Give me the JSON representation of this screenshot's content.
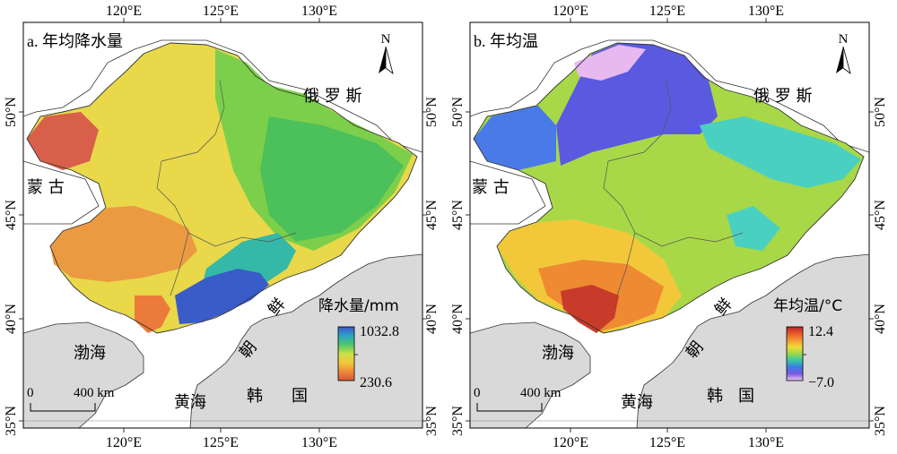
{
  "maps": [
    {
      "id": "precip",
      "title": "a. 年均降水量",
      "legend": {
        "title": "降水量/mm",
        "max": "1032.8",
        "min": "230.6",
        "colors": [
          "#3b58c8",
          "#2ea3c4",
          "#4fc86a",
          "#c8e04a",
          "#f2c83a",
          "#ee8a3a",
          "#d8553a"
        ]
      },
      "scale_labels": [
        "0",
        "400 km"
      ],
      "north": "N"
    },
    {
      "id": "temp",
      "title": "b. 年均温",
      "legend": {
        "title": "年均温/°C",
        "max": "12.4",
        "min": "−7.0",
        "colors": [
          "#b8242a",
          "#e85a2a",
          "#f29a32",
          "#f2d83a",
          "#9ad84a",
          "#3ac8a0",
          "#3a7ae8",
          "#7a5ae0",
          "#f0c8f0"
        ]
      },
      "scale_labels": [
        "0",
        "400 km"
      ],
      "north": "N"
    }
  ],
  "x_ticks": [
    "120°E",
    "125°E",
    "130°E"
  ],
  "y_ticks": [
    "50°N",
    "45°N",
    "40°N",
    "35°N"
  ],
  "place_labels": {
    "russia": "俄 罗 斯",
    "mongolia": "蒙 古",
    "bohai": "渤海",
    "yellow_sea": "黄海",
    "korea_ch1": "朝",
    "korea_ch2": "鲜",
    "rok_ch1": "韩",
    "rok_ch2": "国"
  }
}
